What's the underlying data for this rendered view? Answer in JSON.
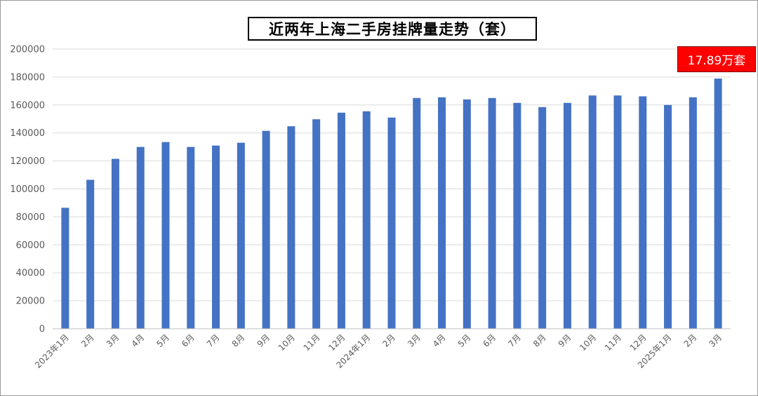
{
  "chart_data": {
    "type": "bar",
    "title": "近两年上海二手房挂牌量走势（套）",
    "categories": [
      "2023年1月",
      "2月",
      "3月",
      "4月",
      "5月",
      "6月",
      "7月",
      "8月",
      "9月",
      "10月",
      "11月",
      "12月",
      "2024年1月",
      "2月",
      "3月",
      "4月",
      "5月",
      "6月",
      "7月",
      "8月",
      "9月",
      "10月",
      "11月",
      "12月",
      "2025年1月",
      "2月",
      "3月"
    ],
    "values": [
      86500,
      106500,
      121500,
      130000,
      133500,
      130000,
      131000,
      133000,
      141500,
      144800,
      149800,
      154500,
      155500,
      151000,
      165000,
      165500,
      164000,
      165000,
      161500,
      158500,
      161500,
      166800,
      166800,
      166200,
      160000,
      165500,
      178900
    ],
    "ylim": [
      0,
      200000
    ],
    "yticks": [
      0,
      20000,
      40000,
      60000,
      80000,
      100000,
      120000,
      140000,
      160000,
      180000,
      200000
    ],
    "grid": true,
    "annotation": "17.89万套",
    "colors": {
      "bar": "#4472c4",
      "grid": "#d9d9d9",
      "annotation_bg": "#ff0000"
    }
  }
}
